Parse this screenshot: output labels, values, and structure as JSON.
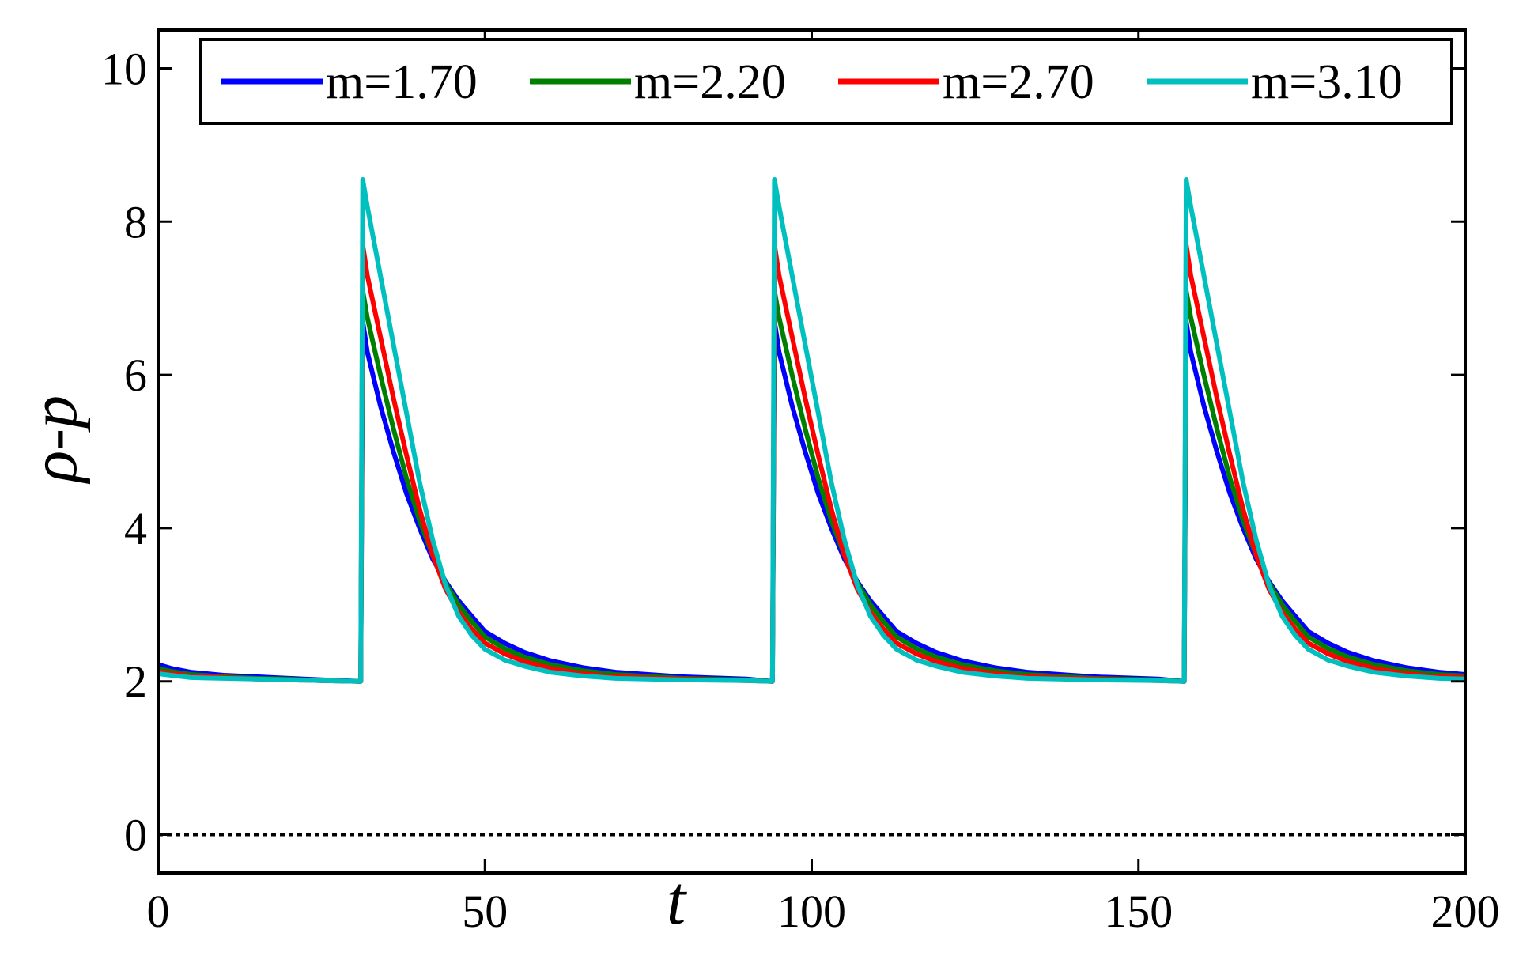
{
  "chart_data": {
    "type": "line",
    "xlabel": "t",
    "ylabel": "ρ-p",
    "xlim": [
      0,
      200
    ],
    "ylim": [
      -0.5,
      10.5
    ],
    "xticks": [
      0,
      50,
      100,
      150,
      200
    ],
    "yticks": [
      0,
      2,
      4,
      6,
      8,
      10
    ],
    "xtick_labels": [
      "0",
      "50",
      "100",
      "150",
      "200"
    ],
    "ytick_labels": [
      "0",
      "2",
      "4",
      "6",
      "8",
      "10"
    ],
    "grid": false,
    "legend_position": "top",
    "reference_line": {
      "y": 0,
      "style": "dotted",
      "color": "#000000"
    },
    "series": [
      {
        "name": "m=1.70",
        "color": "#0000ff",
        "x": [
          0,
          2,
          5,
          10,
          15,
          20,
          25,
          31,
          31.3,
          32,
          34,
          36,
          38,
          40,
          42,
          44,
          46,
          48,
          50,
          53,
          56,
          60,
          65,
          70,
          80,
          90,
          94,
          94.3,
          95,
          97,
          99,
          101,
          103,
          105,
          107,
          109,
          111,
          113,
          116,
          119,
          123,
          128,
          133,
          143,
          153,
          157,
          157.3,
          158,
          160,
          162,
          164,
          166,
          168,
          170,
          172,
          174,
          176,
          179,
          182,
          186,
          191,
          196,
          200
        ],
        "y": [
          2.22,
          2.17,
          2.12,
          2.08,
          2.06,
          2.04,
          2.02,
          2.0,
          6.7,
          6.3,
          5.6,
          5.0,
          4.45,
          4.0,
          3.6,
          3.3,
          3.05,
          2.85,
          2.65,
          2.5,
          2.38,
          2.27,
          2.18,
          2.12,
          2.06,
          2.03,
          2.0,
          6.7,
          6.3,
          5.6,
          5.0,
          4.45,
          4.0,
          3.6,
          3.3,
          3.05,
          2.85,
          2.65,
          2.5,
          2.38,
          2.27,
          2.18,
          2.12,
          2.06,
          2.03,
          2.0,
          6.7,
          6.3,
          5.6,
          5.0,
          4.45,
          4.0,
          3.6,
          3.3,
          3.05,
          2.85,
          2.65,
          2.5,
          2.38,
          2.27,
          2.18,
          2.12,
          2.09
        ]
      },
      {
        "name": "m=2.20",
        "color": "#007f00",
        "x": [
          0,
          2,
          5,
          10,
          15,
          20,
          25,
          31,
          31.3,
          32,
          34,
          36,
          38,
          40,
          42,
          44,
          46,
          48,
          50,
          53,
          56,
          60,
          65,
          70,
          80,
          90,
          94,
          94.3,
          95,
          97,
          99,
          101,
          103,
          105,
          107,
          109,
          111,
          113,
          116,
          119,
          123,
          128,
          133,
          143,
          153,
          157,
          157.3,
          158,
          160,
          162,
          164,
          166,
          168,
          170,
          172,
          174,
          176,
          179,
          182,
          186,
          191,
          196,
          200
        ],
        "y": [
          2.17,
          2.13,
          2.09,
          2.06,
          2.04,
          2.03,
          2.01,
          2.0,
          7.1,
          6.75,
          6.0,
          5.3,
          4.65,
          4.1,
          3.65,
          3.28,
          3.0,
          2.78,
          2.58,
          2.43,
          2.32,
          2.22,
          2.14,
          2.09,
          2.04,
          2.02,
          2.0,
          7.1,
          6.75,
          6.0,
          5.3,
          4.65,
          4.1,
          3.65,
          3.28,
          3.0,
          2.78,
          2.58,
          2.43,
          2.32,
          2.22,
          2.14,
          2.09,
          2.04,
          2.02,
          2.0,
          7.1,
          6.75,
          6.0,
          5.3,
          4.65,
          4.1,
          3.65,
          3.28,
          3.0,
          2.78,
          2.58,
          2.43,
          2.32,
          2.22,
          2.14,
          2.09,
          2.07
        ]
      },
      {
        "name": "m=2.70",
        "color": "#ff0000",
        "x": [
          0,
          2,
          5,
          10,
          15,
          20,
          25,
          31,
          31.3,
          32,
          34,
          36,
          38,
          40,
          42,
          44,
          46,
          48,
          50,
          53,
          56,
          60,
          65,
          70,
          80,
          90,
          94,
          94.3,
          95,
          97,
          99,
          101,
          103,
          105,
          107,
          109,
          111,
          113,
          116,
          119,
          123,
          128,
          133,
          143,
          153,
          157,
          157.3,
          158,
          160,
          162,
          164,
          166,
          168,
          170,
          172,
          174,
          176,
          179,
          182,
          186,
          191,
          196,
          200
        ],
        "y": [
          2.13,
          2.1,
          2.07,
          2.05,
          2.03,
          2.02,
          2.01,
          2.0,
          7.7,
          7.3,
          6.5,
          5.7,
          4.95,
          4.25,
          3.65,
          3.2,
          2.9,
          2.68,
          2.5,
          2.36,
          2.26,
          2.17,
          2.1,
          2.06,
          2.03,
          2.01,
          2.0,
          7.7,
          7.3,
          6.5,
          5.7,
          4.95,
          4.25,
          3.65,
          3.2,
          2.9,
          2.68,
          2.5,
          2.36,
          2.26,
          2.17,
          2.1,
          2.06,
          2.03,
          2.01,
          2.0,
          7.7,
          7.3,
          6.5,
          5.7,
          4.95,
          4.25,
          3.65,
          3.2,
          2.9,
          2.68,
          2.5,
          2.36,
          2.26,
          2.17,
          2.1,
          2.06,
          2.05
        ]
      },
      {
        "name": "m=3.10",
        "color": "#00bfbf",
        "x": [
          0,
          2,
          5,
          10,
          15,
          20,
          25,
          31,
          31.3,
          32,
          34,
          36,
          38,
          40,
          42,
          44,
          46,
          48,
          50,
          53,
          56,
          60,
          65,
          70,
          80,
          90,
          94,
          94.3,
          95,
          97,
          99,
          101,
          103,
          105,
          107,
          109,
          111,
          113,
          116,
          119,
          123,
          128,
          133,
          143,
          153,
          157,
          157.3,
          158,
          160,
          162,
          164,
          166,
          168,
          170,
          172,
          174,
          176,
          179,
          182,
          186,
          191,
          196,
          200
        ],
        "y": [
          2.1,
          2.08,
          2.05,
          2.04,
          2.03,
          2.02,
          2.01,
          2.0,
          8.55,
          8.2,
          7.3,
          6.4,
          5.5,
          4.6,
          3.85,
          3.25,
          2.85,
          2.6,
          2.42,
          2.28,
          2.2,
          2.12,
          2.07,
          2.04,
          2.02,
          2.01,
          2.0,
          8.55,
          8.2,
          7.3,
          6.4,
          5.5,
          4.6,
          3.85,
          3.25,
          2.85,
          2.6,
          2.42,
          2.28,
          2.2,
          2.12,
          2.07,
          2.04,
          2.02,
          2.01,
          2.0,
          8.55,
          8.2,
          7.3,
          6.4,
          5.5,
          4.6,
          3.85,
          3.25,
          2.85,
          2.6,
          2.42,
          2.28,
          2.2,
          2.12,
          2.07,
          2.04,
          2.03
        ]
      }
    ]
  }
}
